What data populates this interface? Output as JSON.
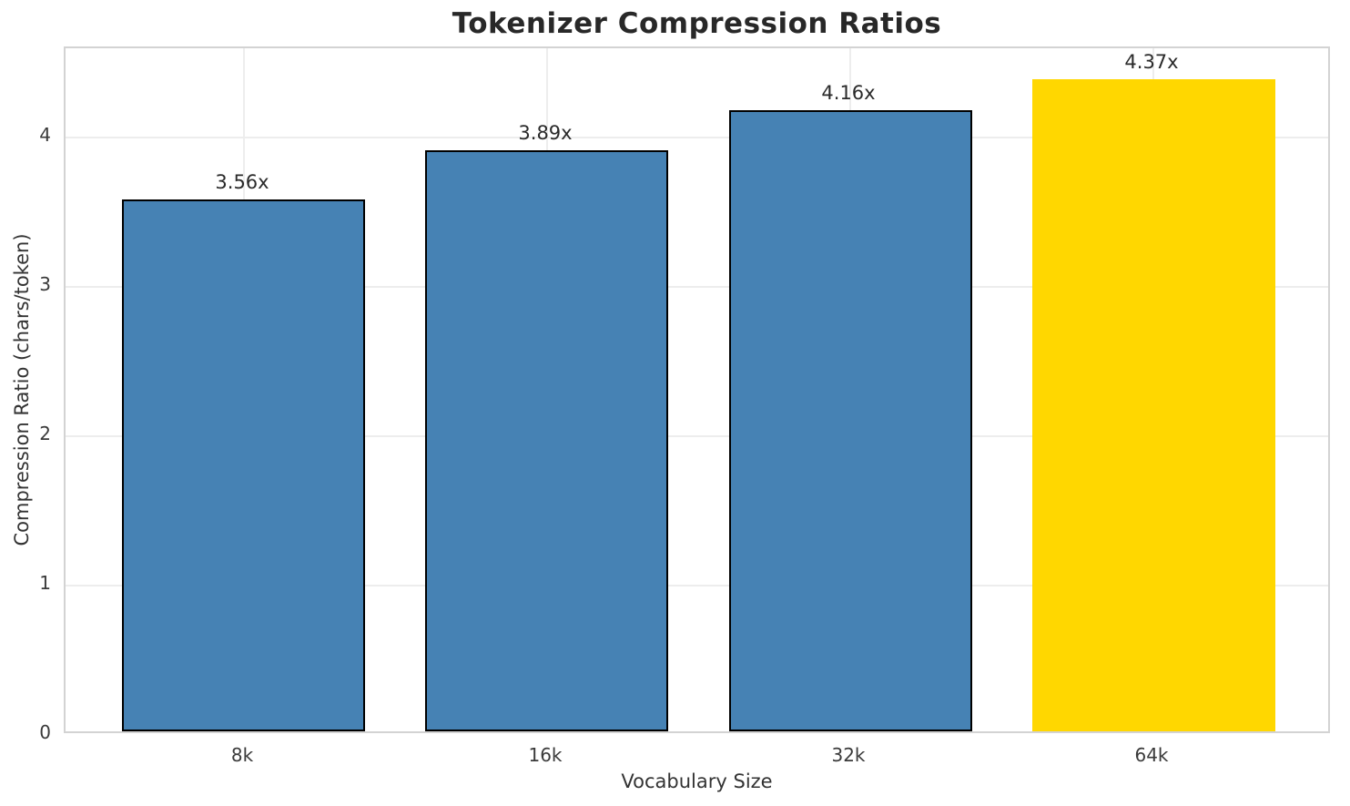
{
  "chart_data": {
    "type": "bar",
    "title": "Tokenizer Compression Ratios",
    "xlabel": "Vocabulary Size",
    "ylabel": "Compression Ratio (chars/token)",
    "categories": [
      "8k",
      "16k",
      "32k",
      "64k"
    ],
    "values": [
      3.56,
      3.89,
      4.16,
      4.37
    ],
    "bar_labels": [
      "3.56x",
      "3.89x",
      "4.16x",
      "4.37x"
    ],
    "bar_colors": [
      "#4682B4",
      "#4682B4",
      "#4682B4",
      "#FFD700"
    ],
    "bar_edge_colors": [
      "#000000",
      "#000000",
      "#000000",
      "none"
    ],
    "yticks": [
      "0",
      "1",
      "2",
      "3",
      "4"
    ],
    "ytick_values": [
      0,
      1,
      2,
      3,
      4
    ],
    "ylim": [
      0,
      4.6
    ],
    "grid": true,
    "legend_position": "none",
    "colors": {
      "bar_default": "#4682B4",
      "bar_highlight": "#FFD700",
      "bar_edge": "#000000",
      "gridline": "#ededed",
      "spine": "#d3d3d3",
      "text": "#2a2a2a"
    }
  }
}
